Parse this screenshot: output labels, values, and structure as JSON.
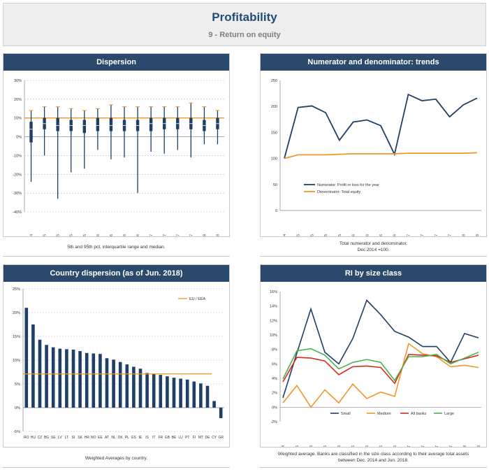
{
  "header": {
    "title": "Profitability",
    "subtitle": "9 - Return on equity"
  },
  "panels": [
    {
      "title": "Dispersion",
      "note": "5th and 95th pct, interquartile range and median."
    },
    {
      "title": "Numerator and denominator: trends",
      "note": "Total numerator and denominator.\nDec 2014 =100."
    },
    {
      "title": "Country dispersion (as of Jun. 2018)",
      "note": "Weighted Averages by country."
    },
    {
      "title": "RI by size class",
      "note": "Weighted average. Banks are classified in the size class according to their average total assets\nbetween Dec. 2014 and Jun. 2018."
    }
  ],
  "colors": {
    "navy": "#1f3f66",
    "orange": "#f0962a",
    "red": "#d62b1e",
    "green": "#4caf50",
    "header_blue": "#2b4a6b"
  },
  "chart_data": [
    {
      "type": "boxplot",
      "title": "Dispersion",
      "categories": [
        "Dec - 14",
        "Mar - 15",
        "Jun - 15",
        "Sep - 15",
        "Dec - 15",
        "Mar - 16",
        "Jun - 16",
        "Sep - 16",
        "Dec - 16",
        "Mar - 17",
        "Jun - 17",
        "Sep - 17",
        "Dec - 17",
        "Mar - 18",
        "Jun - 18"
      ],
      "yticks": [
        "30%",
        "20%",
        "10%",
        "0%",
        "-10%",
        "-20%",
        "-30%",
        "-40%"
      ],
      "ylim": [
        -40,
        30
      ],
      "p5": [
        -24,
        -10,
        -33,
        -19,
        -17,
        -7,
        -12,
        -11,
        -30,
        -8,
        -9,
        -7,
        -11,
        -4,
        -4
      ],
      "p25": [
        -3,
        4,
        3,
        3,
        2,
        3,
        3,
        3,
        3,
        3,
        4,
        4,
        4,
        3,
        4
      ],
      "median": [
        4,
        7,
        6,
        6,
        6,
        6,
        6,
        6,
        6,
        7,
        7,
        7,
        7,
        6,
        7
      ],
      "p75": [
        8,
        10,
        10,
        9,
        9,
        10,
        10,
        9,
        9,
        10,
        10,
        10,
        10,
        9,
        10
      ],
      "p95": [
        14,
        16,
        16,
        15,
        14,
        15,
        17,
        16,
        16,
        16,
        16,
        16,
        18,
        16,
        14
      ],
      "reference_line": 10
    },
    {
      "type": "line",
      "title": "Numerator and denominator: trends",
      "categories": [
        "Dec - 14",
        "Mar - 15",
        "Jun - 15",
        "Sep - 15",
        "Dec - 15",
        "Mar - 16",
        "Jun - 16",
        "Sep - 16",
        "Dec - 16",
        "Mar - 17",
        "Jun - 17",
        "Sep - 17",
        "Dec - 17",
        "Mar - 18",
        "Jun - 18"
      ],
      "yticks": [
        "250",
        "200",
        "150",
        "100",
        "50",
        "0"
      ],
      "ylim": [
        0,
        250
      ],
      "series": [
        {
          "name": "Numerator: Profit or loss for the year",
          "values": [
            100,
            198,
            201,
            188,
            135,
            170,
            174,
            163,
            108,
            223,
            211,
            214,
            180,
            203,
            216
          ]
        },
        {
          "name": "Denominator: Total equity",
          "values": [
            100,
            107,
            107,
            107,
            108,
            109,
            109,
            109,
            109,
            110,
            110,
            110,
            110,
            110,
            111
          ]
        }
      ]
    },
    {
      "type": "bar",
      "title": "Country dispersion (as of Jun. 2018)",
      "categories": [
        "RO",
        "HU",
        "CZ",
        "BG",
        "SE",
        "LV",
        "LT",
        "SI",
        "SK",
        "HR",
        "NO",
        "EE",
        "AT",
        "NL",
        "DK",
        "PL",
        "ES",
        "IE",
        "IS",
        "IT",
        "FR",
        "GB",
        "BE",
        "LU",
        "PT",
        "FI",
        "MT",
        "DE",
        "CY",
        "GR"
      ],
      "values": [
        21,
        17.5,
        14.3,
        13.2,
        12.7,
        12.4,
        12.3,
        12.2,
        11.9,
        11.5,
        11.4,
        11.3,
        10.4,
        10.1,
        9.6,
        9.1,
        8.6,
        8.2,
        7.3,
        7.1,
        6.9,
        6.6,
        6.3,
        6.1,
        5.9,
        5.5,
        5.1,
        4.6,
        1.4,
        -2.2
      ],
      "yticks": [
        "25%",
        "20%",
        "15%",
        "10%",
        "5%",
        "0%",
        "-5%"
      ],
      "ylim": [
        -5,
        25
      ],
      "reference": {
        "name": "EU / EEA",
        "value": 7.1
      }
    },
    {
      "type": "line",
      "title": "RI by size class",
      "categories": [
        "Dec - 14",
        "Mar - 15",
        "Jun - 15",
        "Sep - 15",
        "Dec - 15",
        "Mar - 16",
        "Jun - 16",
        "Sep - 16",
        "Dec - 16",
        "Mar - 17",
        "Jun - 17",
        "Sep - 17",
        "Dec - 17",
        "Mar - 18",
        "Jun - 18"
      ],
      "yticks": [
        "16%",
        "14%",
        "12%",
        "10%",
        "8%",
        "6%",
        "4%",
        "2%",
        "0%",
        "-2%"
      ],
      "ylim": [
        -2,
        16
      ],
      "series": [
        {
          "name": "Small",
          "values": [
            1.3,
            7.5,
            13.6,
            7.6,
            6.0,
            9.5,
            14.8,
            12.8,
            10.5,
            9.7,
            8.4,
            8.4,
            6.2,
            10.2,
            9.6
          ]
        },
        {
          "name": "Medium",
          "values": [
            0.6,
            3.0,
            0.0,
            2.4,
            0.6,
            3.2,
            1.2,
            2.1,
            1.5,
            8.8,
            7.4,
            7.0,
            5.6,
            5.8,
            5.5
          ]
        },
        {
          "name": "All banks",
          "values": [
            3.5,
            6.9,
            6.8,
            6.4,
            4.5,
            5.6,
            5.7,
            5.5,
            3.3,
            7.3,
            7.2,
            7.1,
            6.2,
            6.7,
            7.2
          ]
        },
        {
          "name": "Large",
          "values": [
            3.9,
            7.8,
            8.1,
            7.2,
            5.3,
            6.2,
            6.6,
            6.2,
            3.7,
            7.0,
            7.0,
            7.3,
            6.0,
            6.8,
            7.6
          ]
        }
      ]
    }
  ]
}
